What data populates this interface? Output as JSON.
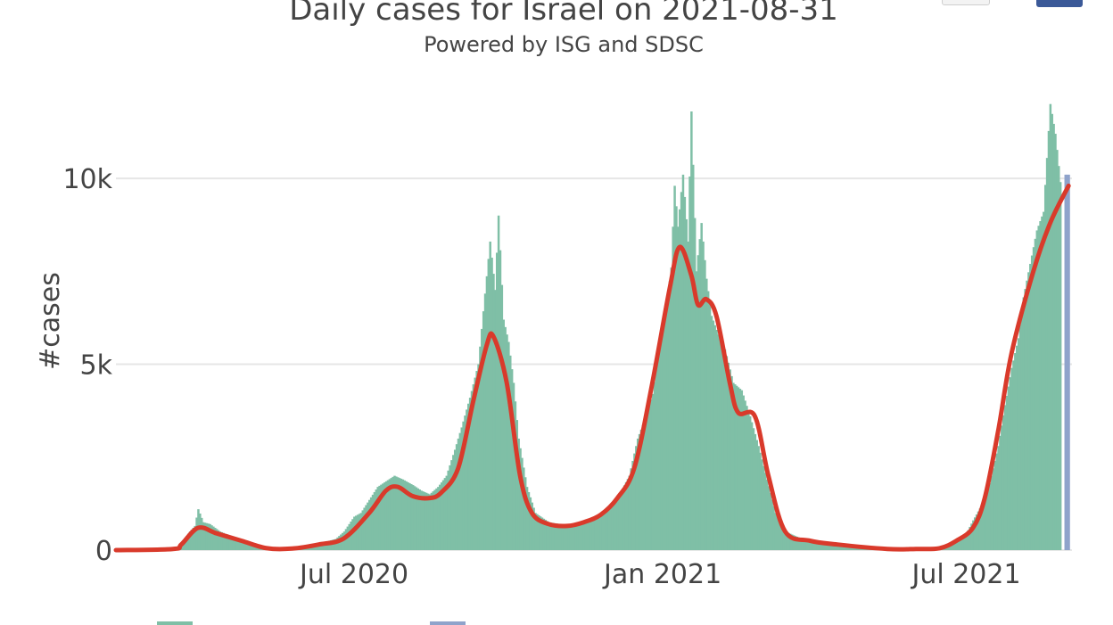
{
  "chart_data": {
    "type": "bar",
    "title": "Daily cases for Israel on 2021-08-31",
    "subtitle": "Powered by ISG and SDSC",
    "xlabel": "",
    "ylabel": "#cases",
    "xlim": [
      "2020-02-10",
      "2021-09-02"
    ],
    "ylim": [
      0,
      12400
    ],
    "x_ticks": [
      {
        "date": "2020-07-01",
        "label": "Jul 2020"
      },
      {
        "date": "2021-01-01",
        "label": "Jan 2021"
      },
      {
        "date": "2021-07-01",
        "label": "Jul 2021"
      }
    ],
    "y_ticks": [
      {
        "value": 0,
        "label": "0"
      },
      {
        "value": 5000,
        "label": "5k"
      },
      {
        "value": 10000,
        "label": "10k"
      }
    ],
    "grid": true,
    "colors": {
      "bars": "#7fbfa6",
      "projected_bars": "#8fa3cb",
      "smoothed_line": "#d93a2b",
      "grid": "#e6e6e6",
      "text": "#444444"
    },
    "series": [
      {
        "type": "bar",
        "points": [
          [
            "2020-03-20",
            200
          ],
          [
            "2020-03-25",
            500
          ],
          [
            "2020-03-28",
            650
          ],
          [
            "2020-03-30",
            1100
          ],
          [
            "2020-04-02",
            750
          ],
          [
            "2020-04-06",
            700
          ],
          [
            "2020-04-12",
            500
          ],
          [
            "2020-04-20",
            350
          ],
          [
            "2020-05-01",
            150
          ],
          [
            "2020-05-15",
            40
          ],
          [
            "2020-06-01",
            80
          ],
          [
            "2020-06-10",
            180
          ],
          [
            "2020-06-20",
            300
          ],
          [
            "2020-06-25",
            500
          ],
          [
            "2020-07-01",
            900
          ],
          [
            "2020-07-05",
            1000
          ],
          [
            "2020-07-10",
            1350
          ],
          [
            "2020-07-15",
            1700
          ],
          [
            "2020-07-20",
            1850
          ],
          [
            "2020-07-25",
            2000
          ],
          [
            "2020-07-30",
            1900
          ],
          [
            "2020-08-05",
            1750
          ],
          [
            "2020-08-10",
            1600
          ],
          [
            "2020-08-15",
            1500
          ],
          [
            "2020-08-20",
            1700
          ],
          [
            "2020-08-25",
            2000
          ],
          [
            "2020-08-30",
            2700
          ],
          [
            "2020-09-03",
            3300
          ],
          [
            "2020-09-08",
            4100
          ],
          [
            "2020-09-13",
            5000
          ],
          [
            "2020-09-17",
            6900
          ],
          [
            "2020-09-20",
            8300
          ],
          [
            "2020-09-23",
            7000
          ],
          [
            "2020-09-25",
            9000
          ],
          [
            "2020-09-28",
            6200
          ],
          [
            "2020-10-01",
            5600
          ],
          [
            "2020-10-04",
            4500
          ],
          [
            "2020-10-07",
            3000
          ],
          [
            "2020-10-12",
            1700
          ],
          [
            "2020-10-17",
            1000
          ],
          [
            "2020-10-25",
            750
          ],
          [
            "2020-11-01",
            700
          ],
          [
            "2020-11-10",
            700
          ],
          [
            "2020-11-20",
            800
          ],
          [
            "2020-11-28",
            1000
          ],
          [
            "2020-12-05",
            1400
          ],
          [
            "2020-12-12",
            2000
          ],
          [
            "2020-12-17",
            3000
          ],
          [
            "2020-12-22",
            3600
          ],
          [
            "2020-12-26",
            4200
          ],
          [
            "2020-12-30",
            5500
          ],
          [
            "2021-01-03",
            6500
          ],
          [
            "2021-01-06",
            7600
          ],
          [
            "2021-01-08",
            9800
          ],
          [
            "2021-01-10",
            8700
          ],
          [
            "2021-01-13",
            10100
          ],
          [
            "2021-01-16",
            8300
          ],
          [
            "2021-01-18",
            11800
          ],
          [
            "2021-01-21",
            7500
          ],
          [
            "2021-01-24",
            8800
          ],
          [
            "2021-01-27",
            7300
          ],
          [
            "2021-01-30",
            6300
          ],
          [
            "2021-02-03",
            5800
          ],
          [
            "2021-02-07",
            5400
          ],
          [
            "2021-02-12",
            4500
          ],
          [
            "2021-02-17",
            4300
          ],
          [
            "2021-02-22",
            3600
          ],
          [
            "2021-02-27",
            2800
          ],
          [
            "2021-03-04",
            1900
          ],
          [
            "2021-03-09",
            1000
          ],
          [
            "2021-03-15",
            500
          ],
          [
            "2021-03-25",
            300
          ],
          [
            "2021-04-10",
            150
          ],
          [
            "2021-05-01",
            50
          ],
          [
            "2021-06-01",
            20
          ],
          [
            "2021-06-20",
            100
          ],
          [
            "2021-06-25",
            300
          ],
          [
            "2021-07-01",
            450
          ],
          [
            "2021-07-05",
            800
          ],
          [
            "2021-07-10",
            1200
          ],
          [
            "2021-07-15",
            1800
          ],
          [
            "2021-07-20",
            2800
          ],
          [
            "2021-07-24",
            3900
          ],
          [
            "2021-07-28",
            4900
          ],
          [
            "2021-08-01",
            5700
          ],
          [
            "2021-08-04",
            6800
          ],
          [
            "2021-08-08",
            7700
          ],
          [
            "2021-08-12",
            8600
          ],
          [
            "2021-08-16",
            9100
          ],
          [
            "2021-08-20",
            12000
          ],
          [
            "2021-08-23",
            11200
          ],
          [
            "2021-08-26",
            9900
          ]
        ]
      },
      {
        "type": "bar",
        "points": [
          [
            "2021-08-29",
            10100
          ],
          [
            "2021-08-31",
            10100
          ]
        ]
      },
      {
        "type": "line",
        "points": [
          [
            "2020-02-10",
            0
          ],
          [
            "2020-03-15",
            30
          ],
          [
            "2020-03-20",
            150
          ],
          [
            "2020-03-30",
            600
          ],
          [
            "2020-04-10",
            450
          ],
          [
            "2020-04-25",
            250
          ],
          [
            "2020-05-10",
            50
          ],
          [
            "2020-05-25",
            40
          ],
          [
            "2020-06-10",
            150
          ],
          [
            "2020-06-25",
            320
          ],
          [
            "2020-07-10",
            1000
          ],
          [
            "2020-07-20",
            1600
          ],
          [
            "2020-07-27",
            1700
          ],
          [
            "2020-08-05",
            1450
          ],
          [
            "2020-08-15",
            1400
          ],
          [
            "2020-08-22",
            1550
          ],
          [
            "2020-09-01",
            2200
          ],
          [
            "2020-09-10",
            4000
          ],
          [
            "2020-09-18",
            5500
          ],
          [
            "2020-09-22",
            5750
          ],
          [
            "2020-09-30",
            4500
          ],
          [
            "2020-10-08",
            2000
          ],
          [
            "2020-10-15",
            1000
          ],
          [
            "2020-10-25",
            700
          ],
          [
            "2020-11-05",
            650
          ],
          [
            "2020-11-15",
            750
          ],
          [
            "2020-11-25",
            950
          ],
          [
            "2020-12-05",
            1400
          ],
          [
            "2020-12-15",
            2200
          ],
          [
            "2020-12-25",
            4300
          ],
          [
            "2021-01-05",
            7000
          ],
          [
            "2021-01-11",
            8150
          ],
          [
            "2021-01-18",
            7400
          ],
          [
            "2021-01-22",
            6600
          ],
          [
            "2021-01-27",
            6750
          ],
          [
            "2021-02-02",
            6300
          ],
          [
            "2021-02-10",
            4500
          ],
          [
            "2021-02-15",
            3700
          ],
          [
            "2021-02-25",
            3600
          ],
          [
            "2021-03-05",
            2000
          ],
          [
            "2021-03-15",
            500
          ],
          [
            "2021-03-30",
            250
          ],
          [
            "2021-04-15",
            150
          ],
          [
            "2021-05-15",
            30
          ],
          [
            "2021-06-01",
            30
          ],
          [
            "2021-06-15",
            50
          ],
          [
            "2021-06-25",
            250
          ],
          [
            "2021-07-05",
            600
          ],
          [
            "2021-07-12",
            1400
          ],
          [
            "2021-07-20",
            3200
          ],
          [
            "2021-07-28",
            5300
          ],
          [
            "2021-08-10",
            7500
          ],
          [
            "2021-08-20",
            8800
          ],
          [
            "2021-08-31",
            9800
          ]
        ]
      }
    ]
  }
}
